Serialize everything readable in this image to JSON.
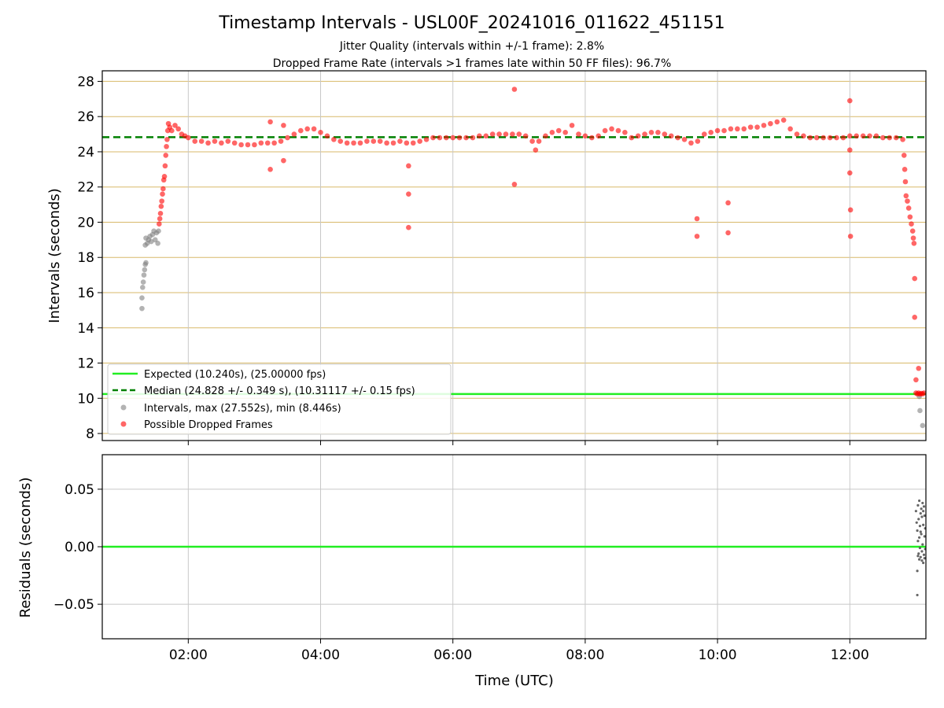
{
  "chart_data": [
    {
      "type": "scatter",
      "title": "Timestamp Intervals - USL00F_20241016_011622_451151",
      "subtitle_1": "Jitter Quality (intervals within +/-1 frame): 2.8%",
      "subtitle_2": "Dropped Frame Rate (intervals >1 frames late within 50 FF files): 96.7%",
      "xlabel": "",
      "ylabel": "Intervals (seconds)",
      "xlim": [
        0.7,
        13.15
      ],
      "ylim": [
        7.6,
        28.6
      ],
      "y_ticks": [
        8,
        10,
        12,
        14,
        16,
        18,
        20,
        22,
        24,
        26,
        28
      ],
      "y_tick_labels": [
        "8",
        "10",
        "12",
        "14",
        "16",
        "18",
        "20",
        "22",
        "24",
        "26",
        "28"
      ],
      "x_ticks": [
        2,
        4,
        6,
        8,
        10,
        12
      ],
      "grid": true,
      "legend_position": "bottom-left",
      "reference_lines": [
        {
          "name": "Expected (10.240s), (25.00000 fps)",
          "y": 10.24,
          "color": "#22ee22",
          "style": "solid"
        },
        {
          "name": "Median (24.828 +/- 0.349 s), (10.31117 +/- 0.15 fps)",
          "y": 24.828,
          "color": "#008000",
          "style": "dashed"
        }
      ],
      "series": [
        {
          "name": "Intervals, max (27.552s), min (8.446s)",
          "color": "#808080",
          "points": [
            [
              1.3,
              15.1
            ],
            [
              1.3,
              15.7
            ],
            [
              1.31,
              16.3
            ],
            [
              1.32,
              16.6
            ],
            [
              1.33,
              17.0
            ],
            [
              1.34,
              17.3
            ],
            [
              1.35,
              17.6
            ],
            [
              1.36,
              17.7
            ],
            [
              1.35,
              18.7
            ],
            [
              1.36,
              19.1
            ],
            [
              1.38,
              18.8
            ],
            [
              1.4,
              19.0
            ],
            [
              1.42,
              19.2
            ],
            [
              1.44,
              18.9
            ],
            [
              1.46,
              19.3
            ],
            [
              1.48,
              19.5
            ],
            [
              1.5,
              19.0
            ],
            [
              1.52,
              19.4
            ],
            [
              1.54,
              18.8
            ],
            [
              1.55,
              19.5
            ],
            [
              13.05,
              10.1
            ],
            [
              13.06,
              9.3
            ],
            [
              13.1,
              8.45
            ]
          ]
        },
        {
          "name": "Possible Dropped Frames",
          "color": "#ff0000",
          "points": [
            [
              1.56,
              19.9
            ],
            [
              1.57,
              20.2
            ],
            [
              1.58,
              20.5
            ],
            [
              1.59,
              20.9
            ],
            [
              1.6,
              21.2
            ],
            [
              1.61,
              21.6
            ],
            [
              1.62,
              21.9
            ],
            [
              1.63,
              22.4
            ],
            [
              1.64,
              22.6
            ],
            [
              1.65,
              23.2
            ],
            [
              1.66,
              23.8
            ],
            [
              1.67,
              24.3
            ],
            [
              1.68,
              24.7
            ],
            [
              1.69,
              25.2
            ],
            [
              1.7,
              25.6
            ],
            [
              1.72,
              25.4
            ],
            [
              1.75,
              25.2
            ],
            [
              1.8,
              25.5
            ],
            [
              1.85,
              25.3
            ],
            [
              1.9,
              25.0
            ],
            [
              1.95,
              24.9
            ],
            [
              2.0,
              24.8
            ],
            [
              2.1,
              24.6
            ],
            [
              2.2,
              24.6
            ],
            [
              2.3,
              24.5
            ],
            [
              2.4,
              24.6
            ],
            [
              2.5,
              24.5
            ],
            [
              2.6,
              24.6
            ],
            [
              2.7,
              24.5
            ],
            [
              2.8,
              24.4
            ],
            [
              2.9,
              24.4
            ],
            [
              3.0,
              24.4
            ],
            [
              3.1,
              24.5
            ],
            [
              3.2,
              24.5
            ],
            [
              3.24,
              25.7
            ],
            [
              3.24,
              23.0
            ],
            [
              3.3,
              24.5
            ],
            [
              3.4,
              24.6
            ],
            [
              3.44,
              25.5
            ],
            [
              3.44,
              23.5
            ],
            [
              3.5,
              24.8
            ],
            [
              3.6,
              25.0
            ],
            [
              3.7,
              25.2
            ],
            [
              3.8,
              25.3
            ],
            [
              3.9,
              25.3
            ],
            [
              4.0,
              25.1
            ],
            [
              4.1,
              24.9
            ],
            [
              4.2,
              24.7
            ],
            [
              4.3,
              24.6
            ],
            [
              4.4,
              24.5
            ],
            [
              4.5,
              24.5
            ],
            [
              4.6,
              24.5
            ],
            [
              4.7,
              24.6
            ],
            [
              4.8,
              24.6
            ],
            [
              4.9,
              24.6
            ],
            [
              5.0,
              24.5
            ],
            [
              5.1,
              24.5
            ],
            [
              5.2,
              24.6
            ],
            [
              5.3,
              24.5
            ],
            [
              5.33,
              23.2
            ],
            [
              5.33,
              21.6
            ],
            [
              5.33,
              19.7
            ],
            [
              5.4,
              24.5
            ],
            [
              5.5,
              24.6
            ],
            [
              5.6,
              24.7
            ],
            [
              5.7,
              24.8
            ],
            [
              5.8,
              24.8
            ],
            [
              5.9,
              24.8
            ],
            [
              6.0,
              24.8
            ],
            [
              6.1,
              24.8
            ],
            [
              6.2,
              24.8
            ],
            [
              6.3,
              24.8
            ],
            [
              6.4,
              24.9
            ],
            [
              6.5,
              24.9
            ],
            [
              6.6,
              25.0
            ],
            [
              6.7,
              25.0
            ],
            [
              6.8,
              25.0
            ],
            [
              6.9,
              25.0
            ],
            [
              6.93,
              27.55
            ],
            [
              6.93,
              22.15
            ],
            [
              7.0,
              25.0
            ],
            [
              7.1,
              24.9
            ],
            [
              7.2,
              24.6
            ],
            [
              7.25,
              24.1
            ],
            [
              7.3,
              24.6
            ],
            [
              7.4,
              24.9
            ],
            [
              7.5,
              25.1
            ],
            [
              7.6,
              25.2
            ],
            [
              7.7,
              25.1
            ],
            [
              7.8,
              25.5
            ],
            [
              7.9,
              25.0
            ],
            [
              8.0,
              24.9
            ],
            [
              8.1,
              24.8
            ],
            [
              8.2,
              24.9
            ],
            [
              8.3,
              25.2
            ],
            [
              8.4,
              25.3
            ],
            [
              8.5,
              25.2
            ],
            [
              8.6,
              25.1
            ],
            [
              8.7,
              24.8
            ],
            [
              8.8,
              24.9
            ],
            [
              8.9,
              25.0
            ],
            [
              9.0,
              25.1
            ],
            [
              9.1,
              25.1
            ],
            [
              9.2,
              25.0
            ],
            [
              9.3,
              24.9
            ],
            [
              9.4,
              24.8
            ],
            [
              9.5,
              24.7
            ],
            [
              9.6,
              24.5
            ],
            [
              9.69,
              20.2
            ],
            [
              9.69,
              19.2
            ],
            [
              9.7,
              24.6
            ],
            [
              9.8,
              25.0
            ],
            [
              9.9,
              25.1
            ],
            [
              10.0,
              25.2
            ],
            [
              10.1,
              25.2
            ],
            [
              10.16,
              21.1
            ],
            [
              10.16,
              19.4
            ],
            [
              10.2,
              25.3
            ],
            [
              10.3,
              25.3
            ],
            [
              10.4,
              25.3
            ],
            [
              10.5,
              25.4
            ],
            [
              10.6,
              25.4
            ],
            [
              10.7,
              25.5
            ],
            [
              10.8,
              25.6
            ],
            [
              10.9,
              25.7
            ],
            [
              11.0,
              25.8
            ],
            [
              11.1,
              25.3
            ],
            [
              11.2,
              25.0
            ],
            [
              11.3,
              24.9
            ],
            [
              11.4,
              24.8
            ],
            [
              11.5,
              24.8
            ],
            [
              11.6,
              24.8
            ],
            [
              11.7,
              24.8
            ],
            [
              11.8,
              24.8
            ],
            [
              11.9,
              24.8
            ],
            [
              12.0,
              24.9
            ],
            [
              12.0,
              26.9
            ],
            [
              12.0,
              24.1
            ],
            [
              12.0,
              22.8
            ],
            [
              12.01,
              20.7
            ],
            [
              12.01,
              19.2
            ],
            [
              12.1,
              24.9
            ],
            [
              12.2,
              24.9
            ],
            [
              12.3,
              24.9
            ],
            [
              12.4,
              24.9
            ],
            [
              12.5,
              24.8
            ],
            [
              12.6,
              24.8
            ],
            [
              12.7,
              24.8
            ],
            [
              12.8,
              24.7
            ],
            [
              12.82,
              23.8
            ],
            [
              12.83,
              23.0
            ],
            [
              12.84,
              22.3
            ],
            [
              12.85,
              21.5
            ],
            [
              12.87,
              21.2
            ],
            [
              12.89,
              20.8
            ],
            [
              12.91,
              20.3
            ],
            [
              12.93,
              19.9
            ],
            [
              12.95,
              19.5
            ],
            [
              12.96,
              19.1
            ],
            [
              12.97,
              18.8
            ],
            [
              12.98,
              16.8
            ],
            [
              12.98,
              14.6
            ],
            [
              13.0,
              11.05
            ],
            [
              13.04,
              11.7
            ],
            [
              13.0,
              10.3
            ],
            [
              13.02,
              10.25
            ],
            [
              13.04,
              10.3
            ],
            [
              13.06,
              10.24
            ],
            [
              13.08,
              10.28
            ],
            [
              13.1,
              10.25
            ],
            [
              13.12,
              10.3
            ]
          ]
        }
      ]
    },
    {
      "type": "scatter",
      "title": "",
      "xlabel": "Time (UTC)",
      "ylabel": "Residuals (seconds)",
      "xlim": [
        0.7,
        13.15
      ],
      "ylim": [
        -0.08,
        0.08
      ],
      "y_ticks": [
        -0.05,
        0.0,
        0.05
      ],
      "y_tick_labels": [
        "−0.05",
        "0.00",
        "0.05"
      ],
      "x_ticks": [
        2,
        4,
        6,
        8,
        10,
        12
      ],
      "x_tick_labels": [
        "02:00",
        "04:00",
        "06:00",
        "08:00",
        "10:00",
        "12:00"
      ],
      "grid": true,
      "reference_lines": [
        {
          "y": 0.0,
          "color": "#22ee22",
          "style": "solid"
        }
      ],
      "series": [
        {
          "color": "#555555",
          "points": [
            [
              13.0,
              0.031
            ],
            [
              13.01,
              0.021
            ],
            [
              13.02,
              0.014
            ],
            [
              13.02,
              -0.021
            ],
            [
              13.02,
              -0.042
            ],
            [
              13.03,
              0.036
            ],
            [
              13.03,
              0.005
            ],
            [
              13.04,
              0.024
            ],
            [
              13.04,
              -0.006
            ],
            [
              13.05,
              0.04
            ],
            [
              13.05,
              -0.011
            ],
            [
              13.06,
              0.018
            ],
            [
              13.06,
              -0.001
            ],
            [
              13.07,
              0.029
            ],
            [
              13.07,
              -0.009
            ],
            [
              13.08,
              0.033
            ],
            [
              13.08,
              0.011
            ],
            [
              13.09,
              -0.004
            ],
            [
              13.09,
              0.026
            ],
            [
              13.1,
              0.038
            ],
            [
              13.1,
              0.002
            ],
            [
              13.11,
              -0.014
            ],
            [
              13.11,
              0.019
            ],
            [
              13.12,
              0.035
            ],
            [
              13.12,
              -0.007
            ],
            [
              13.13,
              0.009
            ],
            [
              13.13,
              0.027
            ],
            [
              13.14,
              -0.002
            ],
            [
              13.14,
              0.016
            ],
            [
              13.05,
              0.008
            ],
            [
              13.07,
              0.013
            ],
            [
              13.09,
              -0.012
            ],
            [
              13.11,
              0.031
            ],
            [
              13.13,
              -0.01
            ],
            [
              13.03,
              -0.008
            ]
          ]
        }
      ]
    }
  ]
}
